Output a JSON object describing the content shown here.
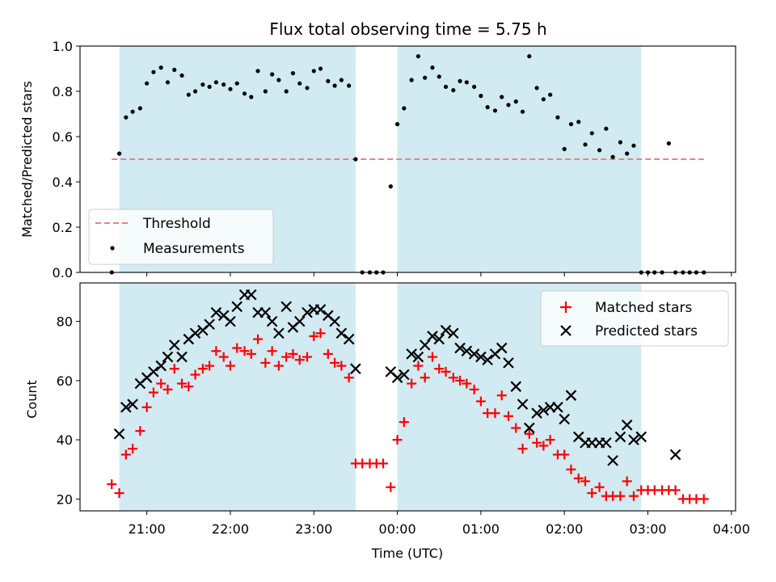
{
  "title": "Flux total observing time = 5.75 h",
  "colors": {
    "shade": "#add8e6",
    "threshold": "#f08080",
    "measurements": "#000000",
    "matched": "#ff0000",
    "predicted": "#000000"
  },
  "chart_data": [
    {
      "type": "scatter",
      "panel": "top",
      "ylabel": "Matched/Predicted stars",
      "ylim": [
        0,
        1.0
      ],
      "yticks": [
        "0.0",
        "0.2",
        "0.4",
        "0.6",
        "0.8",
        "1.0"
      ],
      "ytick_values": [
        0,
        0.2,
        0.4,
        0.6,
        0.8,
        1.0
      ],
      "xlim": [
        -3.8,
        4.05
      ],
      "shaded_spans": [
        [
          -3.33,
          -0.5
        ],
        [
          0.0,
          2.92
        ]
      ],
      "threshold": {
        "name": "Threshold",
        "value": 0.5,
        "x": [
          -3.42,
          3.67
        ]
      },
      "legend": {
        "placement": "lower-left",
        "entries": [
          "Threshold",
          "Measurements"
        ]
      },
      "series": [
        {
          "name": "Measurements",
          "marker": "dot",
          "x": [
            -3.42,
            -3.33,
            -3.25,
            -3.17,
            -3.08,
            -3.0,
            -2.92,
            -2.83,
            -2.75,
            -2.67,
            -2.58,
            -2.5,
            -2.42,
            -2.33,
            -2.25,
            -2.17,
            -2.08,
            -2.0,
            -1.92,
            -1.83,
            -1.75,
            -1.67,
            -1.58,
            -1.5,
            -1.42,
            -1.33,
            -1.25,
            -1.17,
            -1.08,
            -1.0,
            -0.92,
            -0.83,
            -0.75,
            -0.67,
            -0.58,
            -0.5,
            -0.42,
            -0.33,
            -0.25,
            -0.17,
            -0.08,
            0.0,
            0.08,
            0.17,
            0.25,
            0.33,
            0.42,
            0.5,
            0.58,
            0.67,
            0.75,
            0.83,
            0.92,
            1.0,
            1.08,
            1.17,
            1.25,
            1.33,
            1.42,
            1.5,
            1.58,
            1.67,
            1.75,
            1.83,
            1.92,
            2.0,
            2.08,
            2.17,
            2.25,
            2.33,
            2.42,
            2.5,
            2.58,
            2.67,
            2.75,
            2.83,
            2.92,
            3.0,
            3.08,
            3.17,
            3.25,
            3.33,
            3.42,
            3.5,
            3.58,
            3.67
          ],
          "y": [
            0.0,
            0.525,
            0.685,
            0.71,
            0.725,
            0.835,
            0.885,
            0.905,
            0.84,
            0.895,
            0.87,
            0.785,
            0.8,
            0.83,
            0.82,
            0.84,
            0.83,
            0.81,
            0.835,
            0.79,
            0.775,
            0.89,
            0.8,
            0.875,
            0.85,
            0.8,
            0.88,
            0.835,
            0.815,
            0.89,
            0.9,
            0.845,
            0.825,
            0.85,
            0.825,
            0.5,
            0.0,
            0.0,
            0.0,
            0.0,
            0.38,
            0.655,
            0.725,
            0.85,
            0.955,
            0.86,
            0.905,
            0.865,
            0.82,
            0.805,
            0.845,
            0.84,
            0.82,
            0.78,
            0.73,
            0.715,
            0.775,
            0.74,
            0.755,
            0.71,
            0.955,
            0.815,
            0.765,
            0.785,
            0.685,
            0.545,
            0.655,
            0.665,
            0.565,
            0.615,
            0.54,
            0.635,
            0.51,
            0.575,
            0.525,
            0.56,
            0.0,
            0.0,
            0.0,
            0.0,
            0.57,
            0.0,
            0.0,
            0.0,
            0.0,
            0.0
          ]
        }
      ]
    },
    {
      "type": "scatter",
      "panel": "bottom",
      "ylabel": "Count",
      "xlabel": "Time (UTC)",
      "ylim": [
        16,
        93
      ],
      "yticks": [
        "20",
        "40",
        "60",
        "80"
      ],
      "ytick_values": [
        20,
        40,
        60,
        80
      ],
      "xlim": [
        -3.8,
        4.05
      ],
      "xticks": [
        "21:00",
        "22:00",
        "23:00",
        "00:00",
        "01:00",
        "02:00",
        "03:00",
        "04:00"
      ],
      "xtick_values": [
        -3,
        -2,
        -1,
        0,
        1,
        2,
        3,
        4
      ],
      "shaded_spans": [
        [
          -3.33,
          -0.5
        ],
        [
          0.0,
          2.92
        ]
      ],
      "legend": {
        "placement": "upper-right",
        "entries": [
          "Matched stars",
          "Predicted stars"
        ]
      },
      "series": [
        {
          "name": "Matched stars",
          "marker": "plus",
          "x": [
            -3.42,
            -3.33,
            -3.25,
            -3.17,
            -3.08,
            -3.0,
            -2.92,
            -2.83,
            -2.75,
            -2.67,
            -2.58,
            -2.5,
            -2.42,
            -2.33,
            -2.25,
            -2.17,
            -2.08,
            -2.0,
            -1.92,
            -1.83,
            -1.75,
            -1.67,
            -1.58,
            -1.5,
            -1.42,
            -1.33,
            -1.25,
            -1.17,
            -1.08,
            -1.0,
            -0.92,
            -0.83,
            -0.75,
            -0.67,
            -0.58,
            -0.5,
            -0.42,
            -0.33,
            -0.25,
            -0.17,
            -0.08,
            0.0,
            0.08,
            0.17,
            0.25,
            0.33,
            0.42,
            0.5,
            0.58,
            0.67,
            0.75,
            0.83,
            0.92,
            1.0,
            1.08,
            1.17,
            1.25,
            1.33,
            1.42,
            1.5,
            1.58,
            1.67,
            1.75,
            1.83,
            1.92,
            2.0,
            2.08,
            2.17,
            2.25,
            2.33,
            2.42,
            2.5,
            2.58,
            2.67,
            2.75,
            2.83,
            2.92,
            3.0,
            3.08,
            3.17,
            3.25,
            3.33,
            3.42,
            3.5,
            3.58,
            3.67
          ],
          "y": [
            25,
            22,
            35,
            37,
            43,
            51,
            56,
            59,
            57,
            64,
            59,
            58,
            62,
            64,
            65,
            70,
            68,
            65,
            71,
            70,
            69,
            74,
            66,
            70,
            65,
            68,
            69,
            67,
            68,
            75,
            76,
            69,
            66,
            65,
            61,
            32,
            32,
            32,
            32,
            32,
            24,
            40,
            46,
            59,
            65,
            61,
            68,
            64,
            63,
            61,
            60,
            59,
            57,
            53,
            49,
            49,
            55,
            48,
            44,
            37,
            42,
            39,
            38,
            40,
            35,
            35,
            30,
            27,
            26,
            22,
            24,
            21,
            21,
            21,
            26,
            21,
            23,
            23,
            23,
            23,
            23,
            23,
            20,
            20,
            20,
            20
          ]
        },
        {
          "name": "Predicted stars",
          "marker": "x",
          "x": [
            -3.33,
            -3.25,
            -3.17,
            -3.08,
            -3.0,
            -2.92,
            -2.83,
            -2.75,
            -2.67,
            -2.58,
            -2.5,
            -2.42,
            -2.33,
            -2.25,
            -2.17,
            -2.08,
            -2.0,
            -1.92,
            -1.83,
            -1.75,
            -1.67,
            -1.58,
            -1.5,
            -1.42,
            -1.33,
            -1.25,
            -1.17,
            -1.08,
            -1.0,
            -0.92,
            -0.83,
            -0.75,
            -0.67,
            -0.58,
            -0.5,
            -0.08,
            0.0,
            0.08,
            0.17,
            0.25,
            0.33,
            0.42,
            0.5,
            0.58,
            0.67,
            0.75,
            0.83,
            0.92,
            1.0,
            1.08,
            1.17,
            1.25,
            1.33,
            1.42,
            1.5,
            1.58,
            1.67,
            1.75,
            1.83,
            1.92,
            2.0,
            2.08,
            2.17,
            2.25,
            2.33,
            2.42,
            2.5,
            2.58,
            2.67,
            2.75,
            2.83,
            2.92,
            3.33
          ],
          "y": [
            42,
            51,
            52,
            59,
            61,
            63,
            65,
            68,
            72,
            68,
            74,
            76,
            77,
            79,
            83,
            82,
            80,
            85,
            89,
            89,
            83,
            83,
            80,
            76,
            85,
            78,
            80,
            83,
            84,
            84,
            82,
            80,
            76,
            74,
            64,
            63,
            61,
            62,
            69,
            68,
            72,
            75,
            74,
            77,
            76,
            71,
            70,
            69,
            68,
            67,
            69,
            71,
            66,
            58,
            52,
            44,
            49,
            50,
            51,
            51,
            47,
            55,
            41,
            39,
            39,
            39,
            39,
            33,
            41,
            45,
            40,
            41,
            35
          ]
        }
      ]
    }
  ]
}
